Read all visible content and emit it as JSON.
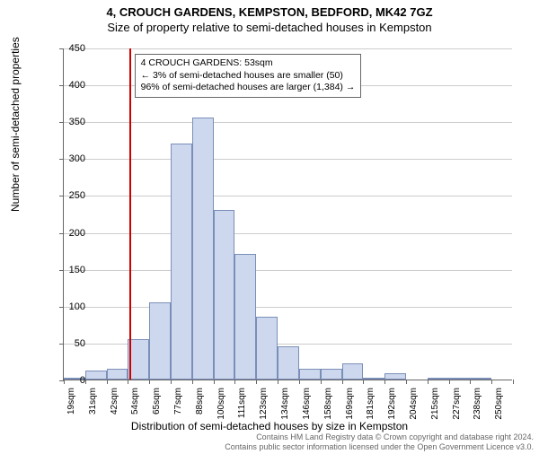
{
  "title_main": "4, CROUCH GARDENS, KEMPSTON, BEDFORD, MK42 7GZ",
  "title_sub": "Size of property relative to semi-detached houses in Kempston",
  "y_axis_label": "Number of semi-detached properties",
  "x_axis_label": "Distribution of semi-detached houses by size in Kempston",
  "chart": {
    "type": "histogram",
    "ylim": [
      0,
      450
    ],
    "ytick_step": 50,
    "bar_fill": "#cdd8ee",
    "bar_stroke": "#7a8fb8",
    "grid_color": "#cccccc",
    "background": "#ffffff",
    "n_bins": 21,
    "x_labels": [
      "19sqm",
      "31sqm",
      "42sqm",
      "54sqm",
      "65sqm",
      "77sqm",
      "88sqm",
      "100sqm",
      "111sqm",
      "123sqm",
      "134sqm",
      "146sqm",
      "158sqm",
      "169sqm",
      "181sqm",
      "192sqm",
      "204sqm",
      "215sqm",
      "227sqm",
      "238sqm",
      "250sqm"
    ],
    "values": [
      2,
      12,
      15,
      55,
      105,
      320,
      355,
      230,
      170,
      85,
      45,
      15,
      15,
      22,
      2,
      8,
      0,
      2,
      2,
      2,
      0
    ],
    "marker": {
      "x_bin": 3.05,
      "color": "#cc0000",
      "width": 2
    }
  },
  "annotation": {
    "lines": [
      "4 CROUCH GARDENS: 53sqm",
      "← 3% of semi-detached houses are smaller (50)",
      "96% of semi-detached houses are larger (1,384) →"
    ],
    "border_color": "#666666",
    "bg": "#ffffff"
  },
  "attribution": {
    "line1": "Contains HM Land Registry data © Crown copyright and database right 2024.",
    "line2": "Contains public sector information licensed under the Open Government Licence v3.0."
  }
}
